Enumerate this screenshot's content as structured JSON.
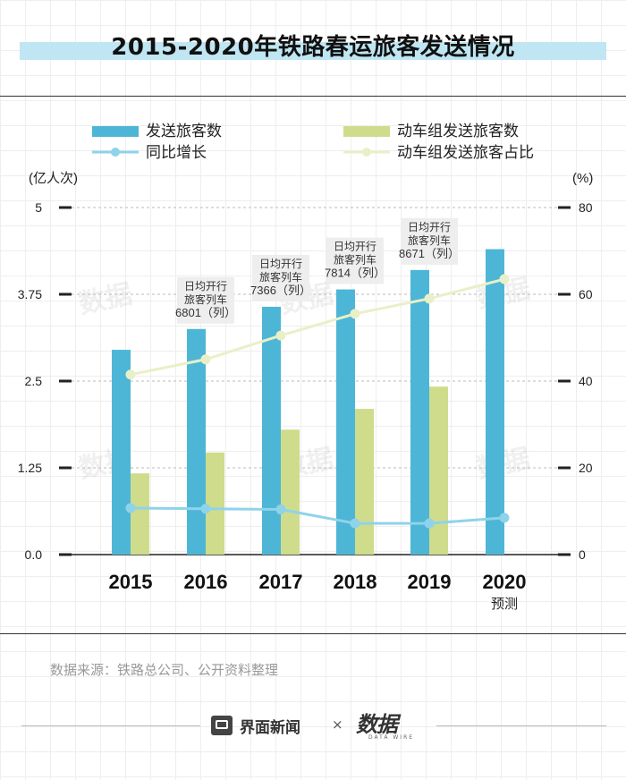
{
  "title": "2015-2020年铁路春运旅客发送情况",
  "source": "数据来源：铁路总公司、公开资料整理",
  "footer": {
    "brand": "界面新闻",
    "times": "×",
    "logo_main": "数据",
    "logo_sub": "DATA WIRE"
  },
  "watermark": "数据",
  "colors": {
    "bar_total": "#4db6d6",
    "bar_emu": "#cfdc8b",
    "line_growth": "#8fd3ea",
    "line_share": "#e9f0c8",
    "title_band": "#bfe6f2"
  },
  "chart_data": {
    "type": "bar",
    "categories": [
      "2015",
      "2016",
      "2017",
      "2018",
      "2019",
      "2020"
    ],
    "category_sublabels": [
      "",
      "",
      "",
      "",
      "",
      "预测"
    ],
    "left_axis": {
      "unit": "(亿人次)",
      "ylim": [
        0,
        5
      ],
      "ticks": [
        "0.0",
        "1.25",
        "2.5",
        "3.75",
        "5"
      ]
    },
    "right_axis": {
      "unit": "(%)",
      "ylim": [
        0,
        80
      ],
      "ticks": [
        "0",
        "20",
        "40",
        "60",
        "80"
      ]
    },
    "series": [
      {
        "name": "发送旅客数",
        "kind": "bar",
        "axis": "left",
        "values": [
          2.95,
          3.25,
          3.57,
          3.82,
          4.1,
          4.4
        ]
      },
      {
        "name": "动车组发送旅客数",
        "kind": "bar",
        "axis": "left",
        "values": [
          1.17,
          1.47,
          1.8,
          2.1,
          2.42,
          null
        ]
      },
      {
        "name": "同比增长",
        "kind": "line",
        "axis": "left",
        "values": [
          0.67,
          0.66,
          0.65,
          0.45,
          0.45,
          0.53
        ]
      },
      {
        "name": "动车组发送旅客占比",
        "kind": "line",
        "axis": "right",
        "values": [
          41.5,
          45,
          50.5,
          55.5,
          59,
          63.5
        ]
      }
    ],
    "annotations": [
      {
        "category": "2016",
        "lines": [
          "日均开行",
          "旅客列车",
          "6801（列）"
        ]
      },
      {
        "category": "2017",
        "lines": [
          "日均开行",
          "旅客列车",
          "7366（列）"
        ]
      },
      {
        "category": "2018",
        "lines": [
          "日均开行",
          "旅客列车",
          "7814（列）"
        ]
      },
      {
        "category": "2019",
        "lines": [
          "日均开行",
          "旅客列车",
          "8671（列）"
        ]
      }
    ],
    "legend_placement": "top",
    "grid": true
  }
}
